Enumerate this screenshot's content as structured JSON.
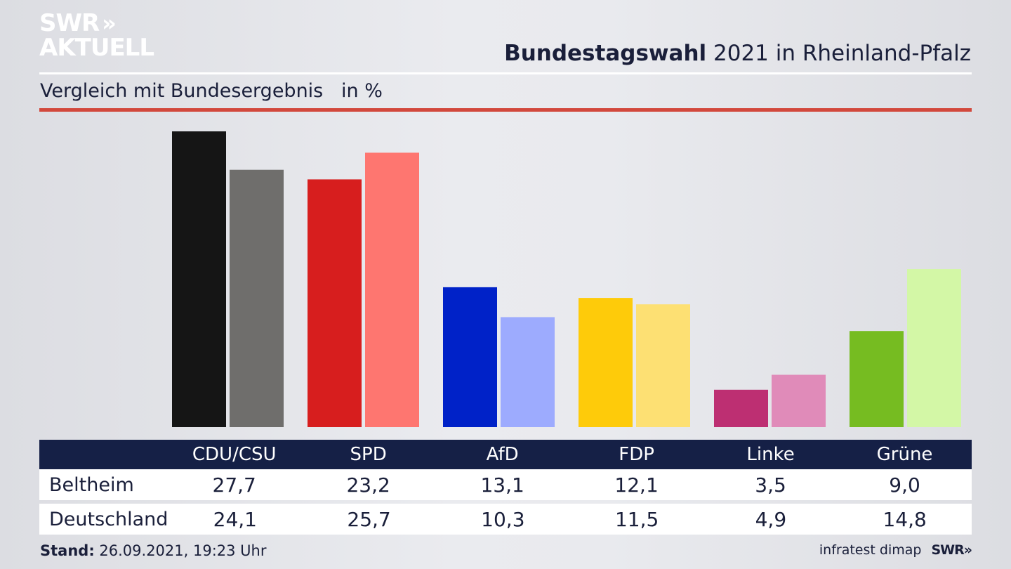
{
  "brand": {
    "line1": "SWR",
    "line2": "AKTUELL",
    "chevrons": "»"
  },
  "header": {
    "title_bold": "Bundestagswahl",
    "title_rest": " 2021 in Rheinland-Pfalz",
    "subtitle": "Vergleich mit Bundesergebnis   in %"
  },
  "chart_data": {
    "type": "bar",
    "categories": [
      "CDU/CSU",
      "SPD",
      "AfD",
      "FDP",
      "Linke",
      "Grüne"
    ],
    "series": [
      {
        "name": "Beltheim",
        "values": [
          27.7,
          23.2,
          13.1,
          12.1,
          3.5,
          9.0
        ]
      },
      {
        "name": "Deutschland",
        "values": [
          24.1,
          25.7,
          10.3,
          11.5,
          4.9,
          14.8
        ]
      }
    ],
    "colors": {
      "primary": [
        "#151515",
        "#d71e1e",
        "#0022c8",
        "#fecb0a",
        "#bd2f72",
        "#76bc21"
      ],
      "secondary": [
        "#6f6e6c",
        "#fe7670",
        "#9dabfe",
        "#fde073",
        "#e08bb9",
        "#d3f7a6"
      ]
    },
    "ylim": [
      0,
      27.7
    ],
    "grid": false
  },
  "table": {
    "headers": [
      "CDU/CSU",
      "SPD",
      "AfD",
      "FDP",
      "Linke",
      "Grüne"
    ],
    "rows": [
      {
        "label": "Beltheim",
        "values": [
          "27,7",
          "23,2",
          "13,1",
          "12,1",
          "3,5",
          "9,0"
        ]
      },
      {
        "label": "Deutschland",
        "values": [
          "24,1",
          "25,7",
          "10,3",
          "11,5",
          "4,9",
          "14,8"
        ]
      }
    ]
  },
  "footer": {
    "stand_label": "Stand:",
    "stand_value": " 26.09.2021, 19:23 Uhr",
    "source": "infratest dimap",
    "swr": "SWR",
    "swr_chevrons": "»"
  }
}
